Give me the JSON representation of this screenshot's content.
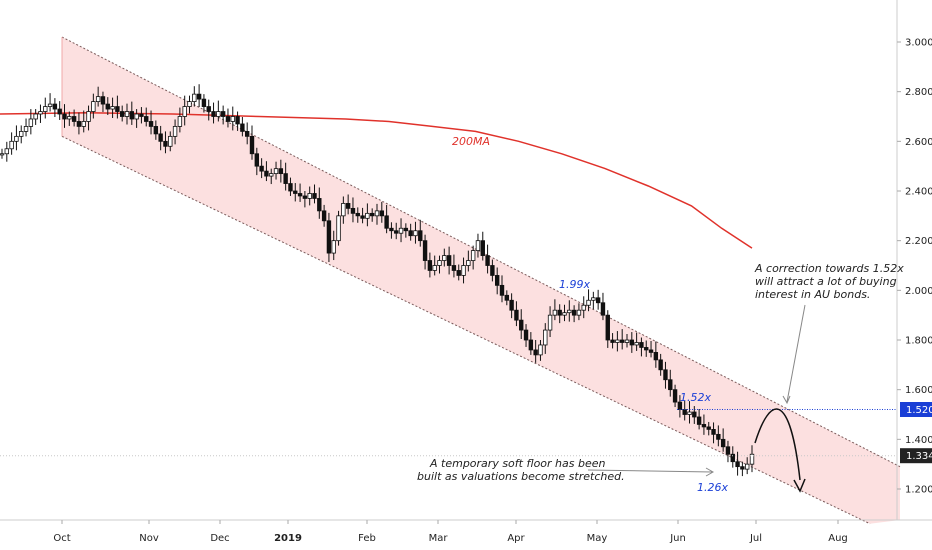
{
  "chart_data": {
    "type": "candlestick",
    "title": "",
    "x_ticks": [
      "Oct",
      "Nov",
      "Dec",
      "2019",
      "Feb",
      "Mar",
      "Apr",
      "May",
      "Jun",
      "Jul",
      "Aug"
    ],
    "y_ticks": [
      "3.000",
      "2.800",
      "2.600",
      "2.400",
      "2.200",
      "2.000",
      "1.800",
      "1.600",
      "1.400",
      "1.200"
    ],
    "ylim": [
      1.06,
      3.12
    ],
    "moving_average": {
      "label": "200MA",
      "points": [
        [
          -8.0,
          2.71
        ],
        [
          -6.0,
          2.715
        ],
        [
          -4.0,
          2.71
        ],
        [
          -2.0,
          2.7
        ],
        [
          0.0,
          2.69
        ],
        [
          1.0,
          2.68
        ],
        [
          2.0,
          2.66
        ],
        [
          3.0,
          2.64
        ],
        [
          4.0,
          2.6
        ],
        [
          5.0,
          2.55
        ],
        [
          6.0,
          2.49
        ],
        [
          7.0,
          2.42
        ],
        [
          8.0,
          2.34
        ],
        [
          8.7,
          2.25
        ],
        [
          9.4,
          2.17
        ]
      ]
    },
    "channel": {
      "upper": [
        [
          0.0,
          3.02
        ],
        [
          10.4,
          1.29
        ]
      ],
      "lower": [
        [
          0.0,
          2.62
        ],
        [
          10.0,
          1.06
        ]
      ]
    },
    "candles_close": [
      2.55,
      2.57,
      2.6,
      2.62,
      2.64,
      2.66,
      2.69,
      2.71,
      2.72,
      2.74,
      2.75,
      2.73,
      2.71,
      2.69,
      2.7,
      2.68,
      2.66,
      2.68,
      2.72,
      2.76,
      2.78,
      2.75,
      2.73,
      2.74,
      2.72,
      2.7,
      2.72,
      2.69,
      2.71,
      2.7,
      2.68,
      2.66,
      2.63,
      2.6,
      2.58,
      2.62,
      2.66,
      2.7,
      2.74,
      2.76,
      2.79,
      2.77,
      2.74,
      2.72,
      2.7,
      2.72,
      2.7,
      2.68,
      2.7,
      2.67,
      2.64,
      2.62,
      2.55,
      2.5,
      2.48,
      2.46,
      2.47,
      2.49,
      2.47,
      2.43,
      2.4,
      2.39,
      2.38,
      2.37,
      2.39,
      2.37,
      2.32,
      2.28,
      2.15,
      2.2,
      2.3,
      2.35,
      2.33,
      2.31,
      2.3,
      2.29,
      2.31,
      2.3,
      2.32,
      2.3,
      2.25,
      2.24,
      2.23,
      2.25,
      2.24,
      2.22,
      2.24,
      2.2,
      2.12,
      2.08,
      2.1,
      2.12,
      2.14,
      2.1,
      2.08,
      2.06,
      2.1,
      2.12,
      2.16,
      2.2,
      2.14,
      2.1,
      2.06,
      2.02,
      1.98,
      1.96,
      1.92,
      1.88,
      1.84,
      1.8,
      1.76,
      1.74,
      1.78,
      1.84,
      1.9,
      1.92,
      1.9,
      1.91,
      1.92,
      1.9,
      1.92,
      1.94,
      1.96,
      1.97,
      1.95,
      1.9,
      1.8,
      1.79,
      1.8,
      1.79,
      1.8,
      1.78,
      1.79,
      1.77,
      1.76,
      1.75,
      1.72,
      1.68,
      1.64,
      1.6,
      1.55,
      1.52,
      1.5,
      1.51,
      1.49,
      1.46,
      1.45,
      1.44,
      1.42,
      1.4,
      1.37,
      1.34,
      1.31,
      1.29,
      1.28,
      1.3,
      1.34
    ],
    "candles_x_range": [
      -8.0,
      9.0
    ],
    "annotations": {
      "peak": "1.99x",
      "target": "1.52x",
      "floor": "1.26x",
      "floor_note_line1": "A temporary soft floor has been",
      "floor_note_line2": "built as valuations become stretched.",
      "correction_note_line1": "A correction towards 1.52x",
      "correction_note_line2": "will attract a lot of buying",
      "correction_note_line3": "interest in AU bonds."
    },
    "level_line": {
      "value": 1.52,
      "label": "1.520",
      "color": "#1a3fd6"
    },
    "last_price": {
      "value": 1.334,
      "label": "1.334",
      "color": "#222222"
    },
    "grid": false,
    "colors": {
      "channel_fill": "#fbd6d6",
      "ma": "#e0322b",
      "target": "#1a3fd6"
    }
  }
}
